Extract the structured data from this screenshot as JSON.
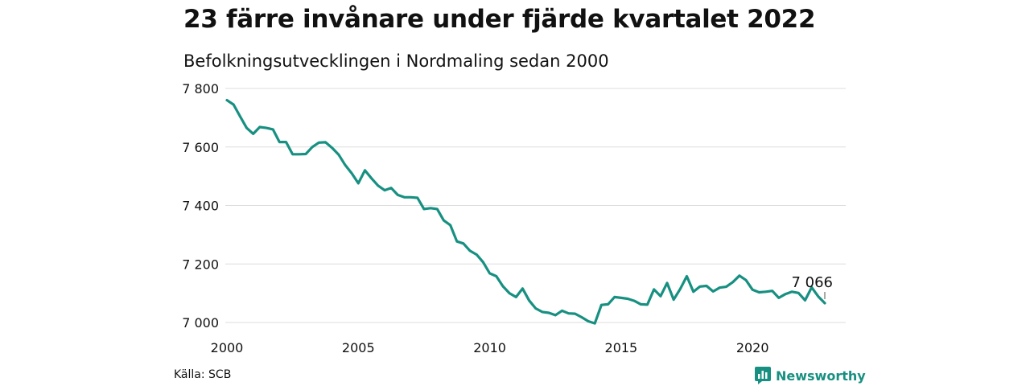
{
  "header": {
    "title": "23 färre invånare under fjärde kvartalet 2022",
    "subtitle": "Befolkningsutvecklingen i Nordmaling sedan 2000"
  },
  "footer": {
    "source": "Källa: SCB",
    "brand": "Newsworthy"
  },
  "colors": {
    "line": "#179081",
    "grid": "#dddddd",
    "brand": "#179081"
  },
  "chart_data": {
    "type": "line",
    "title": "23 färre invånare under fjärde kvartalet 2022",
    "subtitle": "Befolkningsutvecklingen i Nordmaling sedan 2000",
    "ylim": [
      7000,
      7800
    ],
    "yticks": [
      7000,
      7200,
      7400,
      7600,
      7800
    ],
    "ytick_labels": [
      "7 000",
      "7 200",
      "7 400",
      "7 600",
      "7 800"
    ],
    "xlim": [
      2000.0,
      2022.75
    ],
    "xticks": [
      2000,
      2005,
      2010,
      2015,
      2020
    ],
    "xtick_labels": [
      "2000",
      "2005",
      "2010",
      "2015",
      "2020"
    ],
    "grid": true,
    "end_label": "7 066",
    "series": [
      {
        "x": [
          2000.0,
          2000.25,
          2000.5,
          2000.75,
          2001.0,
          2001.25,
          2001.5,
          2001.75,
          2002.0,
          2002.25,
          2002.5,
          2002.75,
          2003.0,
          2003.25,
          2003.5,
          2003.75,
          2004.0,
          2004.25,
          2004.5,
          2004.75,
          2005.0,
          2005.25,
          2005.5,
          2005.75,
          2006.0,
          2006.25,
          2006.5,
          2006.75,
          2007.0,
          2007.25,
          2007.5,
          2007.75,
          2008.0,
          2008.25,
          2008.5,
          2008.75,
          2009.0,
          2009.25,
          2009.5,
          2009.75,
          2010.0,
          2010.25,
          2010.5,
          2010.75,
          2011.0,
          2011.25,
          2011.5,
          2011.75,
          2012.0,
          2012.25,
          2012.5,
          2012.75,
          2013.0,
          2013.25,
          2013.5,
          2013.75,
          2014.0,
          2014.25,
          2014.5,
          2014.75,
          2015.0,
          2015.25,
          2015.5,
          2015.75,
          2016.0,
          2016.25,
          2016.5,
          2016.75,
          2017.0,
          2017.25,
          2017.5,
          2017.75,
          2018.0,
          2018.25,
          2018.5,
          2018.75,
          2019.0,
          2019.25,
          2019.5,
          2019.75,
          2020.0,
          2020.25,
          2020.5,
          2020.75,
          2021.0,
          2021.25,
          2021.5,
          2021.75,
          2022.0,
          2022.25,
          2022.5,
          2022.75
        ],
        "values": [
          7760,
          7745,
          7705,
          7665,
          7645,
          7668,
          7665,
          7660,
          7617,
          7617,
          7575,
          7575,
          7576,
          7600,
          7615,
          7616,
          7597,
          7574,
          7538,
          7510,
          7476,
          7520,
          7493,
          7468,
          7452,
          7460,
          7436,
          7428,
          7428,
          7426,
          7388,
          7391,
          7388,
          7349,
          7333,
          7277,
          7270,
          7245,
          7232,
          7206,
          7168,
          7158,
          7124,
          7100,
          7087,
          7116,
          7075,
          7048,
          7036,
          7033,
          7025,
          7040,
          7031,
          7030,
          7018,
          7004,
          6997,
          7060,
          7062,
          7087,
          7084,
          7081,
          7074,
          7062,
          7061,
          7113,
          7090,
          7135,
          7078,
          7115,
          7158,
          7105,
          7123,
          7125,
          7106,
          7119,
          7122,
          7138,
          7160,
          7145,
          7112,
          7103,
          7105,
          7108,
          7084,
          7097,
          7105,
          7101,
          7076,
          7120,
          7089,
          7066
        ]
      }
    ]
  }
}
